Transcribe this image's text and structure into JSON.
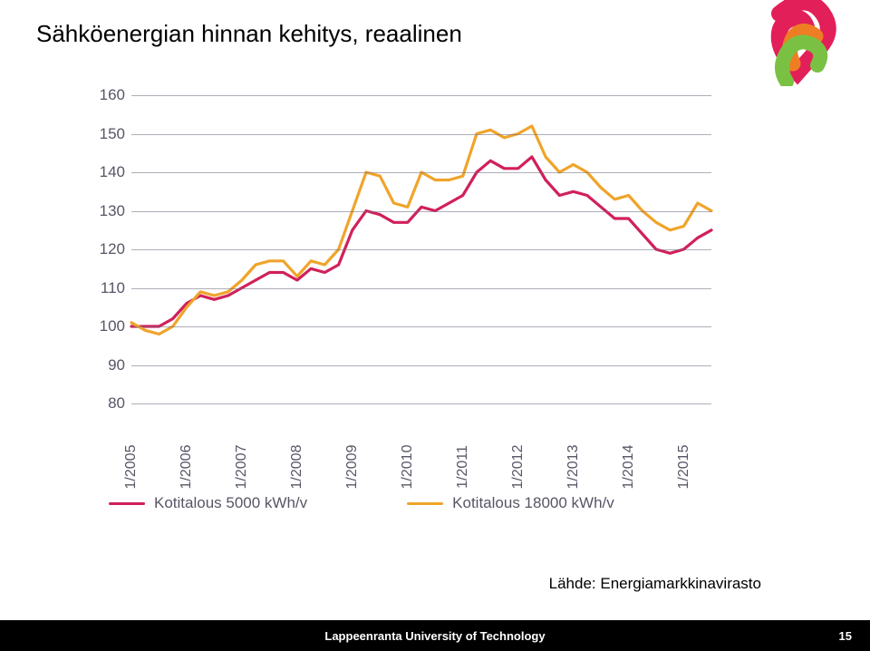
{
  "title": "Sähköenergian hinnan kehitys, reaalinen",
  "source": "Lähde: Energiamarkkinavirasto",
  "footer": {
    "text": "Lappeenranta University of Technology",
    "page": "15"
  },
  "logo": {
    "colors": {
      "red": "#e21f58",
      "orange": "#ef7d24",
      "green": "#7ac143"
    }
  },
  "chart": {
    "type": "line",
    "ylim": [
      80,
      160
    ],
    "ytick_step": 10,
    "yticks": [
      80,
      90,
      100,
      110,
      120,
      130,
      140,
      150,
      160
    ],
    "xlabels": [
      "1/2005",
      "1/2006",
      "1/2007",
      "1/2008",
      "1/2009",
      "1/2010",
      "1/2011",
      "1/2012",
      "1/2013",
      "1/2014",
      "1/2015"
    ],
    "x_range": [
      0,
      10.5
    ],
    "grid_color": "#6b6b80",
    "axis_text_color": "#565666",
    "label_fontsize": 17,
    "line_width": 3.2,
    "background_color": "#ffffff",
    "series": [
      {
        "name": "Kotitalous 5000 kWh/v",
        "color": "#d1205a",
        "x": [
          0,
          0.25,
          0.5,
          0.75,
          1,
          1.25,
          1.5,
          1.75,
          2,
          2.25,
          2.5,
          2.75,
          3,
          3.25,
          3.5,
          3.75,
          4,
          4.25,
          4.5,
          4.75,
          5,
          5.25,
          5.5,
          5.75,
          6,
          6.25,
          6.5,
          6.75,
          7,
          7.25,
          7.5,
          7.75,
          8,
          8.25,
          8.5,
          8.75,
          9,
          9.25,
          9.5,
          9.75,
          10,
          10.25,
          10.5
        ],
        "y": [
          100,
          100,
          100,
          102,
          106,
          108,
          107,
          108,
          110,
          112,
          114,
          114,
          112,
          115,
          114,
          116,
          125,
          130,
          129,
          127,
          127,
          131,
          130,
          132,
          134,
          140,
          143,
          141,
          141,
          144,
          138,
          134,
          135,
          134,
          131,
          128,
          128,
          124,
          120,
          119,
          120,
          123,
          125
        ]
      },
      {
        "name": "Kotitalous 18000 kWh/v",
        "color": "#f0a42b",
        "x": [
          0,
          0.25,
          0.5,
          0.75,
          1,
          1.25,
          1.5,
          1.75,
          2,
          2.25,
          2.5,
          2.75,
          3,
          3.25,
          3.5,
          3.75,
          4,
          4.25,
          4.5,
          4.75,
          5,
          5.25,
          5.5,
          5.75,
          6,
          6.25,
          6.5,
          6.75,
          7,
          7.25,
          7.5,
          7.75,
          8,
          8.25,
          8.5,
          8.75,
          9,
          9.25,
          9.5,
          9.75,
          10,
          10.25,
          10.5
        ],
        "y": [
          101,
          99,
          98,
          100,
          105,
          109,
          108,
          109,
          112,
          116,
          117,
          117,
          113,
          117,
          116,
          120,
          130,
          140,
          139,
          132,
          131,
          140,
          138,
          138,
          139,
          150,
          151,
          149,
          150,
          152,
          144,
          140,
          142,
          140,
          136,
          133,
          134,
          130,
          127,
          125,
          126,
          132,
          130
        ]
      }
    ],
    "legend": {
      "items": [
        {
          "label": "Kotitalous 5000 kWh/v",
          "color": "#d1205a"
        },
        {
          "label": "Kotitalous 18000 kWh/v",
          "color": "#f0a42b"
        }
      ]
    }
  }
}
